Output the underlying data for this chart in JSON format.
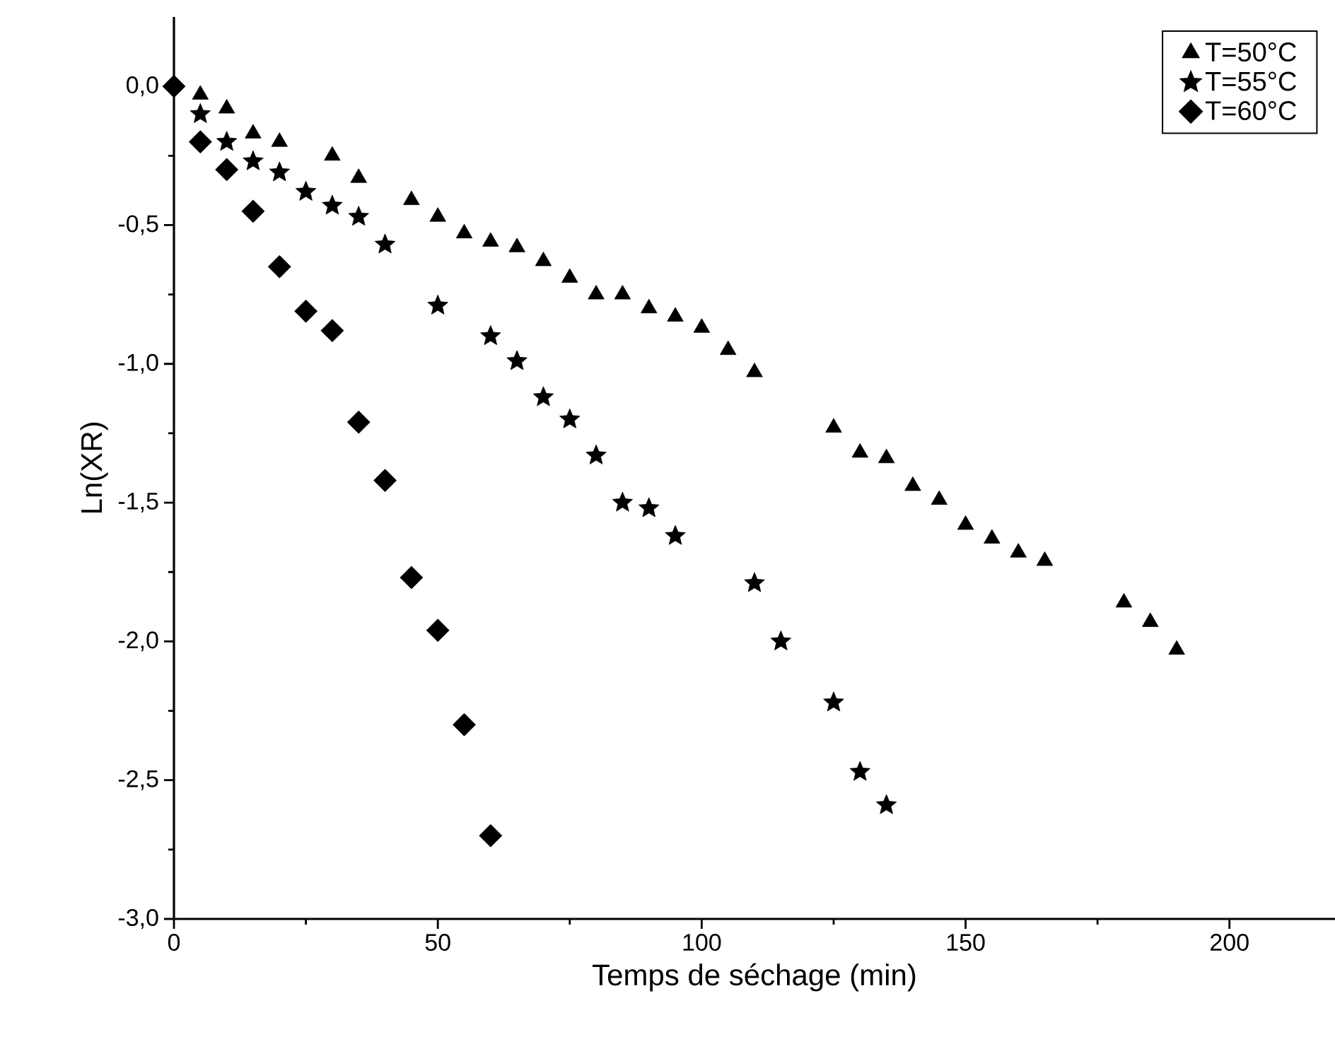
{
  "chart_data": {
    "type": "scatter",
    "xlabel": "Temps de séchage (min)",
    "ylabel": "Ln(XR)",
    "xlim": [
      0,
      220
    ],
    "xticks": [
      0,
      50,
      100,
      150,
      200
    ],
    "ylim": [
      -3.0,
      0.25
    ],
    "yticks": [
      {
        "value": -3.0,
        "label": "-3,0"
      },
      {
        "value": -2.5,
        "label": "-2,5"
      },
      {
        "value": -2.0,
        "label": "-2,0"
      },
      {
        "value": -1.5,
        "label": "-1,5"
      },
      {
        "value": -1.0,
        "label": "-1,0"
      },
      {
        "value": -0.5,
        "label": "-0,5"
      },
      {
        "value": 0.0,
        "label": "0,0"
      }
    ],
    "grid": false,
    "legend": "top right",
    "series": [
      {
        "name": "T=50°C",
        "color": "#000000",
        "marker": "triangle",
        "x": [
          5,
          10,
          15,
          20,
          30,
          35,
          45,
          50,
          55,
          60,
          65,
          70,
          75,
          80,
          85,
          90,
          95,
          100,
          105,
          110,
          125,
          130,
          135,
          140,
          145,
          150,
          155,
          160,
          165,
          180,
          185,
          190
        ],
        "values": [
          -0.03,
          -0.08,
          -0.17,
          -0.2,
          -0.25,
          -0.33,
          -0.41,
          -0.47,
          -0.53,
          -0.56,
          -0.58,
          -0.63,
          -0.69,
          -0.75,
          -0.75,
          -0.8,
          -0.83,
          -0.87,
          -0.95,
          -1.03,
          -1.23,
          -1.32,
          -1.34,
          -1.44,
          -1.49,
          -1.58,
          -1.63,
          -1.68,
          -1.71,
          -1.86,
          -1.93,
          -2.03
        ]
      },
      {
        "name": "T=55°C",
        "color": "#000000",
        "marker": "star",
        "x": [
          5,
          10,
          15,
          20,
          25,
          30,
          35,
          40,
          50,
          60,
          65,
          70,
          75,
          80,
          85,
          90,
          95,
          110,
          115,
          125,
          130,
          135
        ],
        "values": [
          -0.1,
          -0.2,
          -0.27,
          -0.31,
          -0.38,
          -0.43,
          -0.47,
          -0.57,
          -0.79,
          -0.9,
          -0.99,
          -1.12,
          -1.2,
          -1.33,
          -1.5,
          -1.52,
          -1.62,
          -1.79,
          -2.0,
          -2.22,
          -2.47,
          -2.59
        ]
      },
      {
        "name": "T=60°C",
        "color": "#000000",
        "marker": "diamond",
        "x": [
          0,
          5,
          10,
          15,
          20,
          25,
          30,
          35,
          40,
          45,
          50,
          55,
          60
        ],
        "values": [
          0.0,
          -0.2,
          -0.3,
          -0.45,
          -0.65,
          -0.81,
          -0.88,
          -1.21,
          -1.42,
          -1.77,
          -1.96,
          -2.3,
          -2.7
        ]
      }
    ]
  }
}
